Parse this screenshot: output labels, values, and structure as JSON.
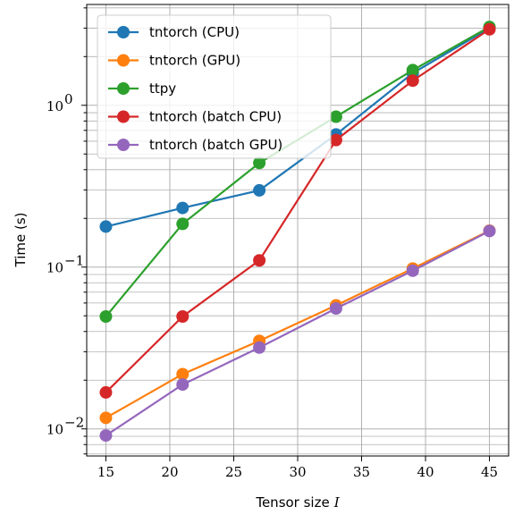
{
  "chart_data": {
    "type": "line",
    "xlabel": "Tensor size",
    "xlabel_symbol": "I",
    "ylabel": "Time (s)",
    "yscale": "log",
    "xlim": [
      13.5,
      46.5
    ],
    "ylim": [
      0.0068,
      4.2
    ],
    "grid": true,
    "grid_minor": true,
    "legend_position": "upper-left",
    "x_ticks": [
      15,
      20,
      25,
      30,
      35,
      40,
      45
    ],
    "y_ticks": [
      {
        "value": 0.01,
        "base": "10",
        "exp": "−2"
      },
      {
        "value": 0.1,
        "base": "10",
        "exp": "−1"
      },
      {
        "value": 1,
        "base": "10",
        "exp": "0"
      }
    ],
    "x": [
      15,
      21,
      27,
      33,
      39,
      45
    ],
    "series": [
      {
        "name": "tntorch (CPU)",
        "color": "#1f77b4",
        "values": [
          0.178,
          0.232,
          0.298,
          0.66,
          1.58,
          3.0
        ]
      },
      {
        "name": "tntorch (GPU)",
        "color": "#ff7f0e",
        "values": [
          0.0117,
          0.0218,
          0.035,
          0.058,
          0.098,
          0.168
        ]
      },
      {
        "name": "ttpy",
        "color": "#2ca02c",
        "values": [
          0.0495,
          0.185,
          0.44,
          0.85,
          1.65,
          3.05
        ]
      },
      {
        "name": "tntorch (batch CPU)",
        "color": "#d62728",
        "values": [
          0.0168,
          0.0495,
          0.11,
          0.61,
          1.42,
          2.95
        ]
      },
      {
        "name": "tntorch (batch GPU)",
        "color": "#9467bd",
        "values": [
          0.0091,
          0.0188,
          0.0318,
          0.0555,
          0.095,
          0.167
        ]
      }
    ]
  }
}
